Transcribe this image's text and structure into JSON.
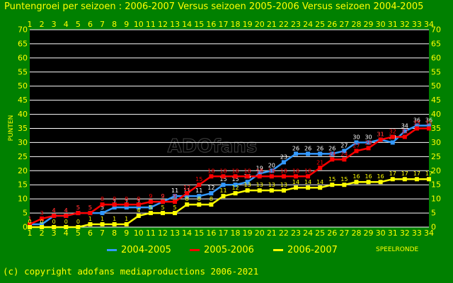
{
  "title": "Puntengroei per seizoen : 2006-2007 Versus seizoen 2005-2006 Versus seizoen 2004-2005",
  "copyright": "(c) copyright adofans mediaproductions 2006-2021",
  "watermark": "ADOfans",
  "colors": {
    "background": "#008000",
    "plot": "#000000",
    "grid": "#ffffff",
    "text": "#ffff00",
    "tick_text": "#ffff00"
  },
  "chart_data": {
    "type": "line",
    "title": "Puntengroei per seizoen : 2006-2007 Versus seizoen 2005-2006 Versus seizoen 2004-2005",
    "xlabel": "SPEELRONDE",
    "ylabel": "PUNTEN",
    "x": [
      1,
      2,
      3,
      4,
      5,
      6,
      7,
      8,
      9,
      10,
      11,
      12,
      13,
      14,
      15,
      16,
      17,
      18,
      19,
      20,
      21,
      22,
      23,
      24,
      25,
      26,
      27,
      28,
      29,
      30,
      31,
      32,
      33,
      34
    ],
    "xlim": [
      1,
      34
    ],
    "ylim": [
      0,
      70
    ],
    "yticks": [
      0,
      5,
      10,
      15,
      20,
      25,
      30,
      35,
      40,
      45,
      50,
      55,
      60,
      65,
      70
    ],
    "grid": true,
    "legend_position": "bottom",
    "series": [
      {
        "name": "2004-2005",
        "color": "#3399ff",
        "values": [
          1,
          1,
          4,
          4,
          5,
          5,
          5,
          7,
          7,
          7,
          7,
          9,
          11,
          11,
          11,
          12,
          15,
          15,
          16,
          19,
          20,
          23,
          26,
          26,
          26,
          26,
          27,
          30,
          30,
          31,
          30,
          34,
          36,
          36
        ]
      },
      {
        "name": "2005-2006",
        "color": "#ff0000",
        "values": [
          1,
          3,
          4,
          4,
          5,
          5,
          8,
          8,
          8,
          8,
          9,
          9,
          9,
          12,
          15,
          18,
          18,
          18,
          18,
          18,
          18,
          18,
          18,
          18,
          21,
          24,
          24,
          27,
          28,
          31,
          32,
          32,
          35,
          35
        ]
      },
      {
        "name": "2006-2007",
        "color": "#ffff00",
        "values": [
          0,
          0,
          0,
          0,
          0,
          1,
          1,
          1,
          1,
          4,
          5,
          5,
          5,
          8,
          8,
          8,
          11,
          12,
          13,
          13,
          13,
          13,
          14,
          14,
          14,
          15,
          15,
          16,
          16,
          16,
          17,
          17,
          17,
          17
        ]
      }
    ]
  }
}
